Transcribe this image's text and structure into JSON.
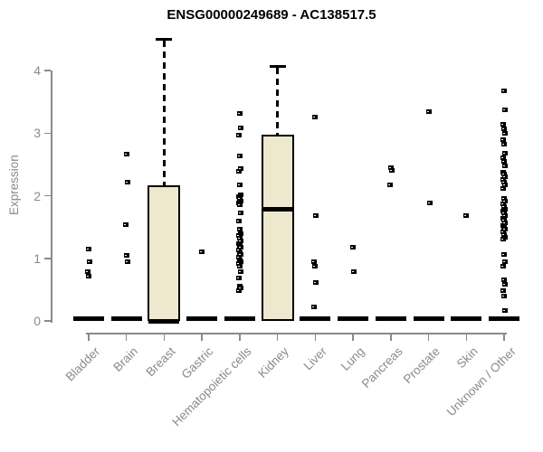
{
  "colors": {
    "box_fill": "#EDE8CE",
    "box_border": "#000000",
    "axis": "#8a8a8a",
    "tick_label": "#8a8a8a",
    "title": "#000000",
    "point": "#000000"
  },
  "chart_data": {
    "type": "boxplot",
    "title": "ENSG00000249689 - AC138517.5",
    "ylabel": "Expression",
    "xlabel": "",
    "ylim": [
      0,
      4.6
    ],
    "y_ticks": [
      0,
      1,
      2,
      3,
      4
    ],
    "grid": false,
    "legend": "none",
    "categories": [
      "Bladder",
      "Brain",
      "Breast",
      "Gastric",
      "Hematopoietic cells",
      "Kidney",
      "Liver",
      "Lung",
      "Pancreas",
      "Prostate",
      "Skin",
      "Unknown / Other"
    ],
    "series": [
      {
        "category": "Bladder",
        "box": {
          "q1": 0,
          "median": 0,
          "q3": 0,
          "whisker_high": 0
        },
        "points": [
          1.15,
          0.95,
          0.78,
          0.71
        ]
      },
      {
        "category": "Brain",
        "box": {
          "q1": 0,
          "median": 0,
          "q3": 0,
          "whisker_high": 0
        },
        "points": [
          2.66,
          2.22,
          1.54,
          1.04,
          0.95
        ]
      },
      {
        "category": "Breast",
        "box": {
          "q1": 0,
          "median": 0,
          "q3": 2.16,
          "whisker_high": 4.5
        },
        "points": []
      },
      {
        "category": "Gastric",
        "box": {
          "q1": 0,
          "median": 0,
          "q3": 0,
          "whisker_high": 0
        },
        "points": [
          1.1
        ]
      },
      {
        "category": "Hematopoietic cells",
        "box": {
          "q1": 0,
          "median": 0,
          "q3": 0,
          "whisker_high": 0
        },
        "points": [
          3.32,
          3.08,
          2.97,
          2.64,
          2.43,
          2.39,
          2.17,
          2.02,
          1.99,
          1.95,
          1.92,
          1.88,
          1.85,
          1.72,
          1.59,
          1.47,
          1.4,
          1.36,
          1.32,
          1.28,
          1.24,
          1.21,
          1.17,
          1.13,
          1.09,
          1.06,
          1.02,
          0.98,
          0.94,
          0.91,
          0.87,
          0.79,
          0.68,
          0.56,
          0.52,
          0.49
        ]
      },
      {
        "category": "Kidney",
        "box": {
          "q1": 0,
          "median": 1.78,
          "q3": 2.97,
          "whisker_high": 4.07
        },
        "points": []
      },
      {
        "category": "Liver",
        "box": {
          "q1": 0,
          "median": 0,
          "q3": 0,
          "whisker_high": 0
        },
        "points": [
          3.26,
          1.68,
          0.94,
          0.87,
          0.62,
          0.23
        ]
      },
      {
        "category": "Lung",
        "box": {
          "q1": 0,
          "median": 0,
          "q3": 0,
          "whisker_high": 0
        },
        "points": [
          1.18,
          0.78
        ]
      },
      {
        "category": "Pancreas",
        "box": {
          "q1": 0,
          "median": 0,
          "q3": 0,
          "whisker_high": 0
        },
        "points": [
          2.45,
          2.41,
          2.17
        ]
      },
      {
        "category": "Prostate",
        "box": {
          "q1": 0,
          "median": 0,
          "q3": 0,
          "whisker_high": 0
        },
        "points": [
          3.35,
          1.89
        ]
      },
      {
        "category": "Skin",
        "box": {
          "q1": 0,
          "median": 0,
          "q3": 0,
          "whisker_high": 0
        },
        "points": [
          1.68
        ]
      },
      {
        "category": "Unknown / Other",
        "box": {
          "q1": 0,
          "median": 0,
          "q3": 0,
          "whisker_high": 0
        },
        "points": [
          3.68,
          3.37,
          3.14,
          3.07,
          3.0,
          2.9,
          2.83,
          2.68,
          2.61,
          2.55,
          2.48,
          2.38,
          2.35,
          2.31,
          2.26,
          2.22,
          2.17,
          2.12,
          1.95,
          1.91,
          1.87,
          1.83,
          1.79,
          1.76,
          1.72,
          1.68,
          1.64,
          1.61,
          1.57,
          1.53,
          1.49,
          1.46,
          1.42,
          1.38,
          1.34,
          1.31,
          1.06,
          0.94,
          0.87,
          0.65,
          0.58,
          0.48,
          0.4,
          0.17
        ]
      }
    ]
  }
}
